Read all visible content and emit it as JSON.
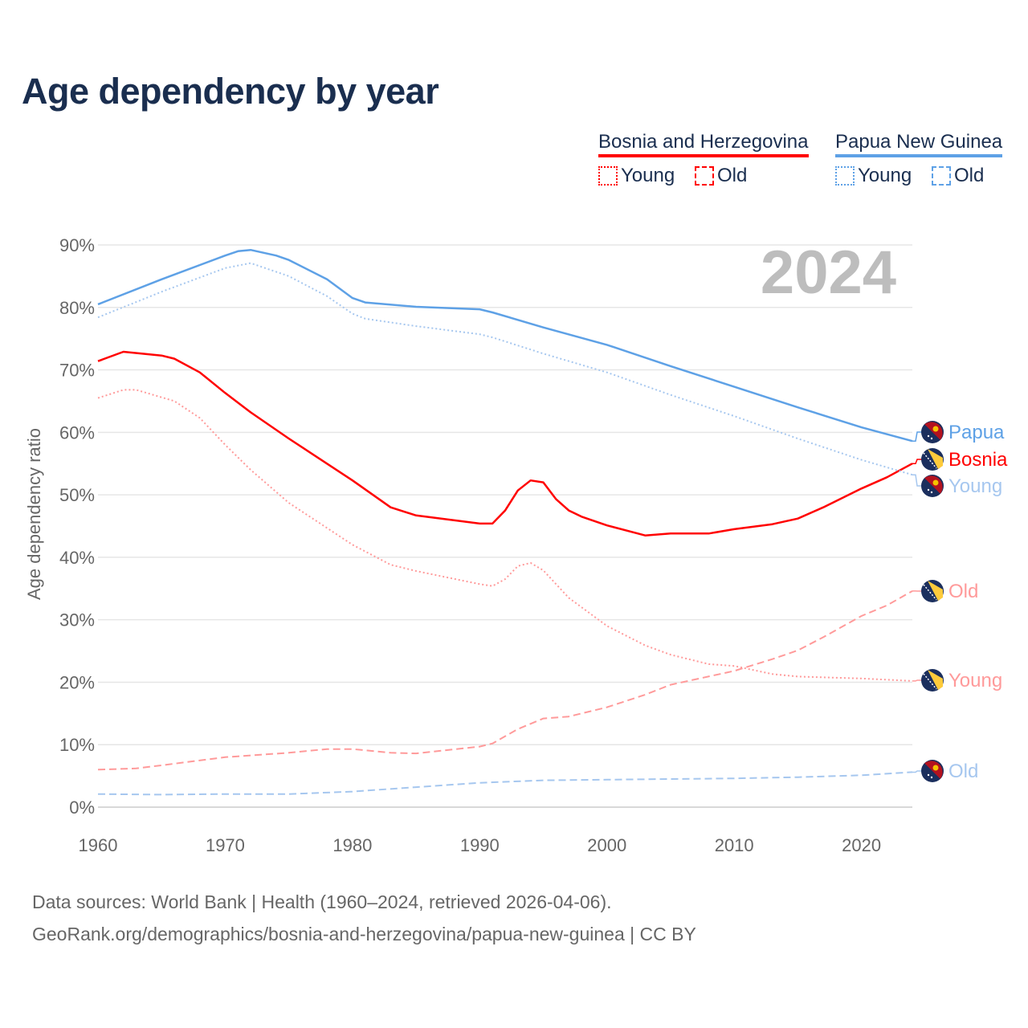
{
  "title": "Age dependency by year",
  "legend": {
    "countries": [
      {
        "name": "Bosnia and Herzegovina",
        "color": "#ff0000",
        "light": "#ff9a9a",
        "young": "Young",
        "old": "Old"
      },
      {
        "name": "Papua New Guinea",
        "color": "#5ea1e6",
        "light": "#a6c7ef",
        "young": "Young",
        "old": "Old"
      }
    ]
  },
  "current_year": "2024",
  "source_line1": "Data sources: World Bank | Health (1960–2024, retrieved 2026-04-06).",
  "source_line2": "GeoRank.org/demographics/bosnia-and-herzegovina/papua-new-guinea | CC BY",
  "chart_data": {
    "type": "line",
    "title": "Age dependency by year",
    "xlabel": "",
    "ylabel": "Age dependency ratio",
    "xlim": [
      1960,
      2024
    ],
    "ylim": [
      0,
      90
    ],
    "x_ticks": [
      "1960",
      "1970",
      "1980",
      "1990",
      "2000",
      "2010",
      "2020"
    ],
    "y_ticks": [
      "0%",
      "10%",
      "20%",
      "30%",
      "40%",
      "50%",
      "60%",
      "70%",
      "80%",
      "90%"
    ],
    "grid": true,
    "series": [
      {
        "name": "Bosnia and Herzegovina total",
        "end_label": "Bosnia",
        "style": "solid",
        "color": "#ff0000",
        "x": [
          1960,
          1962,
          1965,
          1966,
          1968,
          1970,
          1972,
          1975,
          1980,
          1983,
          1985,
          1990,
          1991,
          1992,
          1993,
          1994,
          1995,
          1996,
          1997,
          1998,
          2000,
          2003,
          2005,
          2008,
          2010,
          2013,
          2015,
          2017,
          2020,
          2022,
          2024
        ],
        "y": [
          71.4,
          72.9,
          72.3,
          71.8,
          69.6,
          66.3,
          63.2,
          59.0,
          52.3,
          48.0,
          46.7,
          45.4,
          45.4,
          47.5,
          50.7,
          52.3,
          52.0,
          49.3,
          47.5,
          46.5,
          45.1,
          43.5,
          43.8,
          43.8,
          44.5,
          45.3,
          46.2,
          48.0,
          51.0,
          52.8,
          55.0
        ]
      },
      {
        "name": "Bosnia and Herzegovina young",
        "end_label": "Young",
        "style": "dotted",
        "color": "#ff9a9a",
        "x": [
          1960,
          1962,
          1963,
          1966,
          1968,
          1970,
          1972,
          1975,
          1980,
          1983,
          1985,
          1990,
          1991,
          1992,
          1993,
          1994,
          1995,
          1997,
          2000,
          2003,
          2005,
          2008,
          2010,
          2013,
          2015,
          2020,
          2024
        ],
        "y": [
          65.5,
          66.8,
          66.8,
          65.0,
          62.3,
          58.0,
          54.0,
          48.7,
          42.0,
          38.8,
          37.8,
          35.7,
          35.4,
          36.5,
          38.6,
          39.1,
          37.9,
          33.5,
          29.0,
          25.9,
          24.4,
          22.9,
          22.6,
          21.3,
          20.9,
          20.6,
          20.2
        ]
      },
      {
        "name": "Bosnia and Herzegovina old",
        "end_label": "Old",
        "style": "dashed",
        "color": "#ff9a9a",
        "x": [
          1960,
          1963,
          1965,
          1970,
          1975,
          1978,
          1980,
          1983,
          1985,
          1990,
          1991,
          1993,
          1995,
          1997,
          2000,
          2003,
          2005,
          2010,
          2013,
          2015,
          2017,
          2020,
          2022,
          2024
        ],
        "y": [
          6.0,
          6.2,
          6.7,
          8.0,
          8.7,
          9.3,
          9.3,
          8.7,
          8.6,
          9.7,
          10.2,
          12.5,
          14.2,
          14.5,
          16.0,
          18.0,
          19.6,
          21.8,
          23.7,
          25.1,
          27.2,
          30.6,
          32.3,
          34.6
        ]
      },
      {
        "name": "Papua New Guinea total",
        "end_label": "Papua",
        "style": "solid",
        "color": "#5ea1e6",
        "x": [
          1960,
          1965,
          1970,
          1971,
          1972,
          1974,
          1975,
          1978,
          1980,
          1981,
          1985,
          1990,
          1991,
          1995,
          2000,
          2005,
          2010,
          2015,
          2020,
          2024
        ],
        "y": [
          80.5,
          84.5,
          88.3,
          89.0,
          89.2,
          88.3,
          87.6,
          84.5,
          81.5,
          80.8,
          80.1,
          79.7,
          79.2,
          76.8,
          74.0,
          70.6,
          67.3,
          64.0,
          60.8,
          58.6
        ]
      },
      {
        "name": "Papua New Guinea young",
        "end_label": "Young",
        "style": "dotted",
        "color": "#a6c7ef",
        "x": [
          1960,
          1965,
          1970,
          1972,
          1975,
          1978,
          1980,
          1981,
          1985,
          1990,
          1991,
          1995,
          2000,
          2005,
          2010,
          2015,
          2020,
          2024
        ],
        "y": [
          78.4,
          82.5,
          86.3,
          87.1,
          85.0,
          81.8,
          79.0,
          78.2,
          77.0,
          75.7,
          75.2,
          72.6,
          69.6,
          66.0,
          62.6,
          59.0,
          55.6,
          53.2
        ]
      },
      {
        "name": "Papua New Guinea old",
        "end_label": "Old",
        "style": "dashed",
        "color": "#a6c7ef",
        "x": [
          1960,
          1965,
          1970,
          1975,
          1980,
          1985,
          1990,
          1995,
          2000,
          2005,
          2010,
          2015,
          2020,
          2024
        ],
        "y": [
          2.1,
          2.0,
          2.1,
          2.1,
          2.5,
          3.2,
          3.9,
          4.3,
          4.4,
          4.5,
          4.6,
          4.8,
          5.1,
          5.6
        ]
      }
    ]
  }
}
